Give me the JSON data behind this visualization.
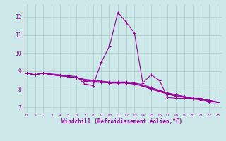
{
  "x": [
    0,
    1,
    2,
    3,
    4,
    5,
    6,
    7,
    8,
    9,
    10,
    11,
    12,
    13,
    14,
    15,
    16,
    17,
    18,
    19,
    20,
    21,
    22,
    23
  ],
  "line1": [
    8.9,
    8.8,
    8.9,
    8.85,
    8.8,
    8.75,
    8.7,
    8.3,
    8.2,
    9.5,
    10.4,
    12.25,
    11.7,
    11.1,
    8.35,
    8.8,
    8.5,
    7.55,
    7.5,
    7.5,
    7.5,
    7.5,
    7.3,
    7.3
  ],
  "line2": [
    8.9,
    8.8,
    8.9,
    8.8,
    8.75,
    8.7,
    8.65,
    8.55,
    8.5,
    8.45,
    8.4,
    8.4,
    8.4,
    8.35,
    8.25,
    8.1,
    7.95,
    7.8,
    7.7,
    7.6,
    7.5,
    7.45,
    7.4,
    7.3
  ],
  "line3": [
    8.9,
    8.8,
    8.9,
    8.8,
    8.75,
    8.7,
    8.65,
    8.5,
    8.45,
    8.4,
    8.35,
    8.35,
    8.35,
    8.3,
    8.2,
    8.05,
    7.9,
    7.75,
    7.65,
    7.6,
    7.5,
    7.45,
    7.38,
    7.3
  ],
  "line4": [
    8.9,
    8.8,
    8.9,
    8.8,
    8.75,
    8.7,
    8.65,
    8.45,
    8.4,
    8.38,
    8.35,
    8.35,
    8.35,
    8.28,
    8.18,
    8.0,
    7.88,
    7.73,
    7.62,
    7.56,
    7.46,
    7.42,
    7.36,
    7.28
  ],
  "line_color": "#990099",
  "bg_color": "#cce8e8",
  "grid_color": "#aacccc",
  "xlabel": "Windchill (Refroidissement éolien,°C)",
  "ylim": [
    6.7,
    12.7
  ],
  "yticks": [
    7,
    8,
    9,
    10,
    11,
    12
  ],
  "xticks": [
    0,
    1,
    2,
    3,
    4,
    5,
    6,
    7,
    8,
    9,
    10,
    11,
    12,
    13,
    14,
    15,
    16,
    17,
    18,
    19,
    20,
    21,
    22,
    23
  ],
  "markersize": 3,
  "linewidth": 0.8
}
